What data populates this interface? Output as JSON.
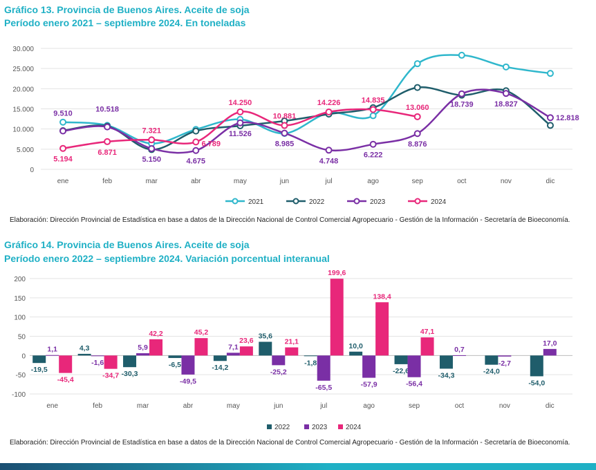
{
  "colors": {
    "c2021": "#2fb7cc",
    "c2022": "#1f5d6b",
    "c2023": "#7a2fa5",
    "c2024": "#e8277a",
    "title": "#1fb0c5"
  },
  "chart1": {
    "title_line1": "Gráfico 13. Provincia de Buenos Aires. Aceite de soja",
    "title_line2": "Período enero 2021 – septiembre 2024. En toneladas",
    "note": "Elaboración: Dirección Provincial de Estadística en base a datos de la Dirección Nacional de Control Comercial Agropecuario - Gestión de la Información - Secretaría de Bioeconomía."
  },
  "chart2": {
    "title_line1": "Gráfico 14. Provincia de Buenos Aires. Aceite de soja",
    "title_line2": "Período enero 2022 – septiembre  2024. Variación porcentual interanual",
    "note": "Elaboración: Dirección Provincial de Estadística en base a datos de la Dirección Nacional de Control Comercial Agropecuario - Gestión de la Información - Secretaría de Bioeconomía."
  },
  "chart_data": [
    {
      "type": "line",
      "categories": [
        "ene",
        "feb",
        "mar",
        "abr",
        "may",
        "jun",
        "jul",
        "ago",
        "sep",
        "oct",
        "nov",
        "dic"
      ],
      "ylim": [
        0,
        30000
      ],
      "yticks": [
        "0",
        "5.000",
        "10.000",
        "15.000",
        "20.000",
        "25.000",
        "30.000"
      ],
      "ytick_values": [
        0,
        5000,
        10000,
        15000,
        20000,
        25000,
        30000
      ],
      "grid": true,
      "legend": "bottom",
      "series": [
        {
          "name": "2021",
          "color": "#2fb7cc",
          "values": [
            11700,
            10900,
            6400,
            9900,
            12400,
            8900,
            14000,
            13300,
            26200,
            28300,
            25400,
            23800
          ]
        },
        {
          "name": "2022",
          "color": "#1f5d6b",
          "values": [
            9600,
            10700,
            4900,
            9500,
            10800,
            12000,
            13700,
            15300,
            20300,
            18400,
            19500,
            10900
          ]
        },
        {
          "name": "2023",
          "color": "#7a2fa5",
          "values": [
            9510,
            10518,
            5150,
            4675,
            11526,
            8985,
            4748,
            6222,
            8876,
            18739,
            18827,
            12818
          ]
        },
        {
          "name": "2024",
          "color": "#e8277a",
          "values": [
            5194,
            6871,
            7321,
            6789,
            14250,
            10881,
            14226,
            14835,
            13060,
            null,
            null,
            null
          ]
        }
      ],
      "data_labels": [
        {
          "series": "2023",
          "index": 0,
          "text": "9.510"
        },
        {
          "series": "2023",
          "index": 1,
          "text": "10.518"
        },
        {
          "series": "2023",
          "index": 2,
          "text": "5.150"
        },
        {
          "series": "2023",
          "index": 3,
          "text": "4.675"
        },
        {
          "series": "2023",
          "index": 4,
          "text": "11.526"
        },
        {
          "series": "2023",
          "index": 5,
          "text": "8.985"
        },
        {
          "series": "2023",
          "index": 6,
          "text": "4.748"
        },
        {
          "series": "2023",
          "index": 7,
          "text": "6.222"
        },
        {
          "series": "2023",
          "index": 8,
          "text": "8.876"
        },
        {
          "series": "2023",
          "index": 9,
          "text": "18.739"
        },
        {
          "series": "2023",
          "index": 10,
          "text": "18.827"
        },
        {
          "series": "2023",
          "index": 11,
          "text": "12.818"
        },
        {
          "series": "2024",
          "index": 0,
          "text": "5.194"
        },
        {
          "series": "2024",
          "index": 1,
          "text": "6.871"
        },
        {
          "series": "2024",
          "index": 2,
          "text": "7.321"
        },
        {
          "series": "2024",
          "index": 3,
          "text": "6.789"
        },
        {
          "series": "2024",
          "index": 4,
          "text": "14.250"
        },
        {
          "series": "2024",
          "index": 5,
          "text": "10.881"
        },
        {
          "series": "2024",
          "index": 6,
          "text": "14.226"
        },
        {
          "series": "2024",
          "index": 7,
          "text": "14.835"
        },
        {
          "series": "2024",
          "index": 8,
          "text": "13.060"
        }
      ]
    },
    {
      "type": "bar",
      "categories": [
        "ene",
        "feb",
        "mar",
        "abr",
        "may",
        "jun",
        "jul",
        "ago",
        "sep",
        "oct",
        "nov",
        "dic"
      ],
      "ylim": [
        -100,
        200
      ],
      "yticks": [
        "-100",
        "-50",
        "0",
        "50",
        "100",
        "150",
        "200"
      ],
      "ytick_values": [
        -100,
        -50,
        0,
        50,
        100,
        150,
        200
      ],
      "grid": true,
      "legend": "bottom",
      "series": [
        {
          "name": "2022",
          "color": "#1f5d6b",
          "values": [
            -19.5,
            4.3,
            -30.3,
            -6.5,
            -14.2,
            35.6,
            -1.8,
            10.0,
            -22.6,
            -34.3,
            -24.0,
            -54.0
          ],
          "labels": [
            "-19,5",
            "4,3",
            "-30,3",
            "-6,5",
            "-14,2",
            "35,6",
            "-1,8",
            "10,0",
            "-22,6",
            "-34,3",
            "-24,0",
            "-54,0"
          ]
        },
        {
          "name": "2023",
          "color": "#7a2fa5",
          "values": [
            1.1,
            -1.6,
            5.9,
            -49.5,
            7.1,
            -25.2,
            -65.5,
            -57.9,
            -56.4,
            0.7,
            -2.7,
            17.0
          ],
          "labels": [
            "1,1",
            "-1,6",
            "5,9",
            "-49,5",
            "7,1",
            "-25,2",
            "-65,5",
            "-57,9",
            "-56,4",
            "0,7",
            "-2,7",
            "17,0"
          ]
        },
        {
          "name": "2024",
          "color": "#e8277a",
          "values": [
            -45.4,
            -34.7,
            42.2,
            45.2,
            23.6,
            21.1,
            199.6,
            138.4,
            47.1,
            null,
            null,
            null
          ],
          "labels": [
            "-45,4",
            "-34,7",
            "42,2",
            "45,2",
            "23,6",
            "21,1",
            "199,6",
            "138,4",
            "47,1",
            "",
            "",
            ""
          ]
        }
      ]
    }
  ]
}
